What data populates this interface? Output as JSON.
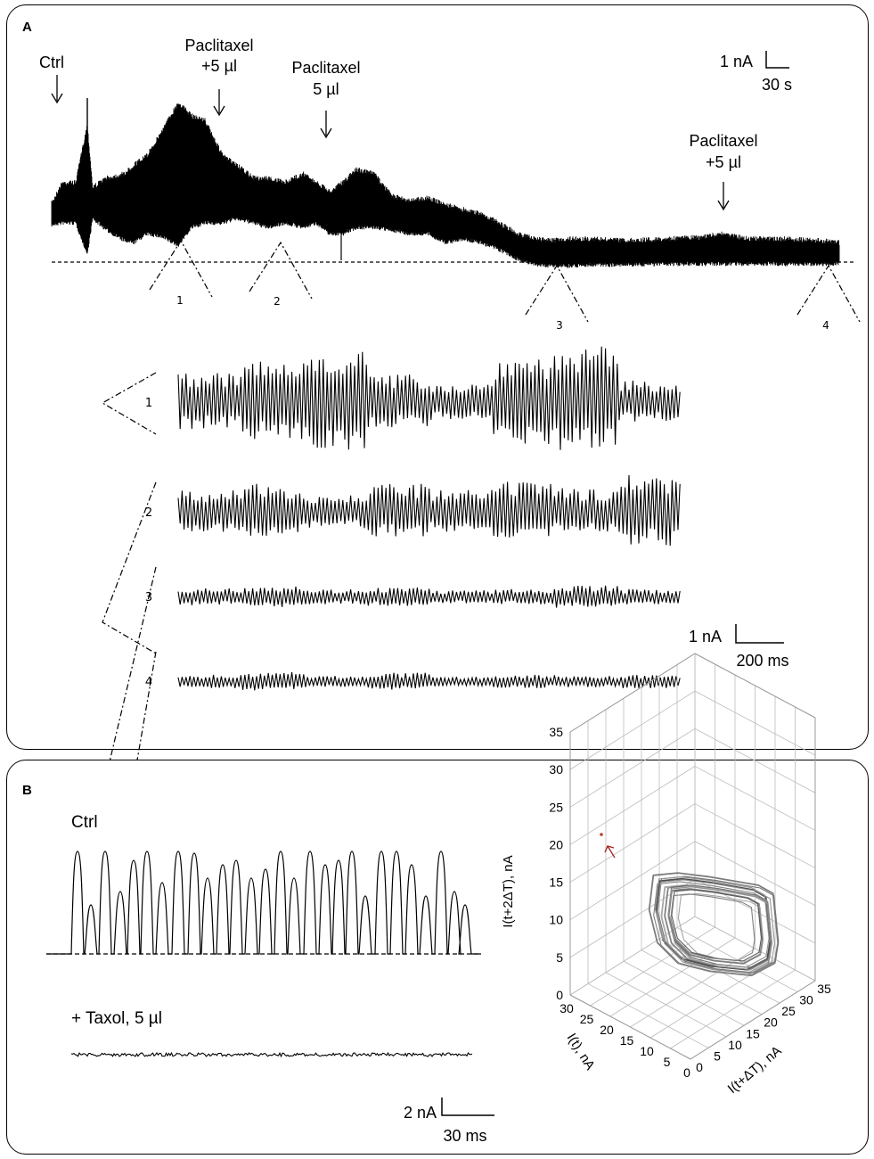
{
  "panel_a": {
    "letter": "A",
    "annotations": [
      {
        "id": "ctrl",
        "lines": [
          "Ctrl"
        ]
      },
      {
        "id": "pac1",
        "lines": [
          "Paclitaxel",
          "+5 µl"
        ]
      },
      {
        "id": "pac2",
        "lines": [
          "Paclitaxel",
          "5 µl"
        ]
      },
      {
        "id": "pac3",
        "lines": [
          "Paclitaxel",
          "+5 µl"
        ]
      }
    ],
    "scale_top": {
      "y_label": "1 nA",
      "x_label": "30 s"
    },
    "scale_mid": {
      "y_label": "1 nA",
      "x_label": "200 ms"
    },
    "zoom_markers": [
      "1",
      "2",
      "3",
      "4"
    ],
    "trace_labels": [
      "1",
      "2",
      "3",
      "4"
    ]
  },
  "panel_b": {
    "letter": "B",
    "ctrl_label": "Ctrl",
    "taxol_label": "+ Taxol, 5 µl",
    "scale": {
      "y_label": "2 nA",
      "x_label": "30 ms"
    }
  },
  "chart_data": [
    {
      "type": "line",
      "description_id": "long-recording",
      "segments": [
        {
          "marker": "1",
          "relative_amplitude": 1.0
        },
        {
          "marker": "2",
          "relative_amplitude": 0.62
        },
        {
          "marker": "3",
          "relative_amplitude": 0.33
        },
        {
          "marker": "4",
          "relative_amplitude": 0.28
        }
      ],
      "events": [
        "Ctrl",
        "Paclitaxel +5 µl",
        "Paclitaxel 5 µl",
        "Paclitaxel +5 µl"
      ]
    },
    {
      "type": "line",
      "description_id": "ctrl-vs-taxol",
      "series": [
        {
          "name": "Ctrl",
          "peak_count": 21
        },
        {
          "name": "+ Taxol, 5 µl",
          "peak_count": 0
        }
      ]
    },
    {
      "type": "scatter",
      "description_id": "phase-portrait-3d",
      "xlabel": "I(t), nA",
      "ylabel": "I(t+ΔT), nA",
      "zlabel": "I(t+2ΔT), nA",
      "x_ticks": [
        "30",
        "25",
        "20",
        "15",
        "10",
        "5",
        "0"
      ],
      "y_ticks": [
        "35",
        "30",
        "25",
        "20",
        "15",
        "10",
        "5",
        "0"
      ],
      "z_ticks": [
        "35",
        "30",
        "25",
        "20",
        "15",
        "10",
        "5",
        "0"
      ],
      "xlim": [
        0,
        30
      ],
      "ylim": [
        0,
        35
      ],
      "zlim": [
        0,
        35
      ],
      "point_color": "#c0392b"
    }
  ]
}
